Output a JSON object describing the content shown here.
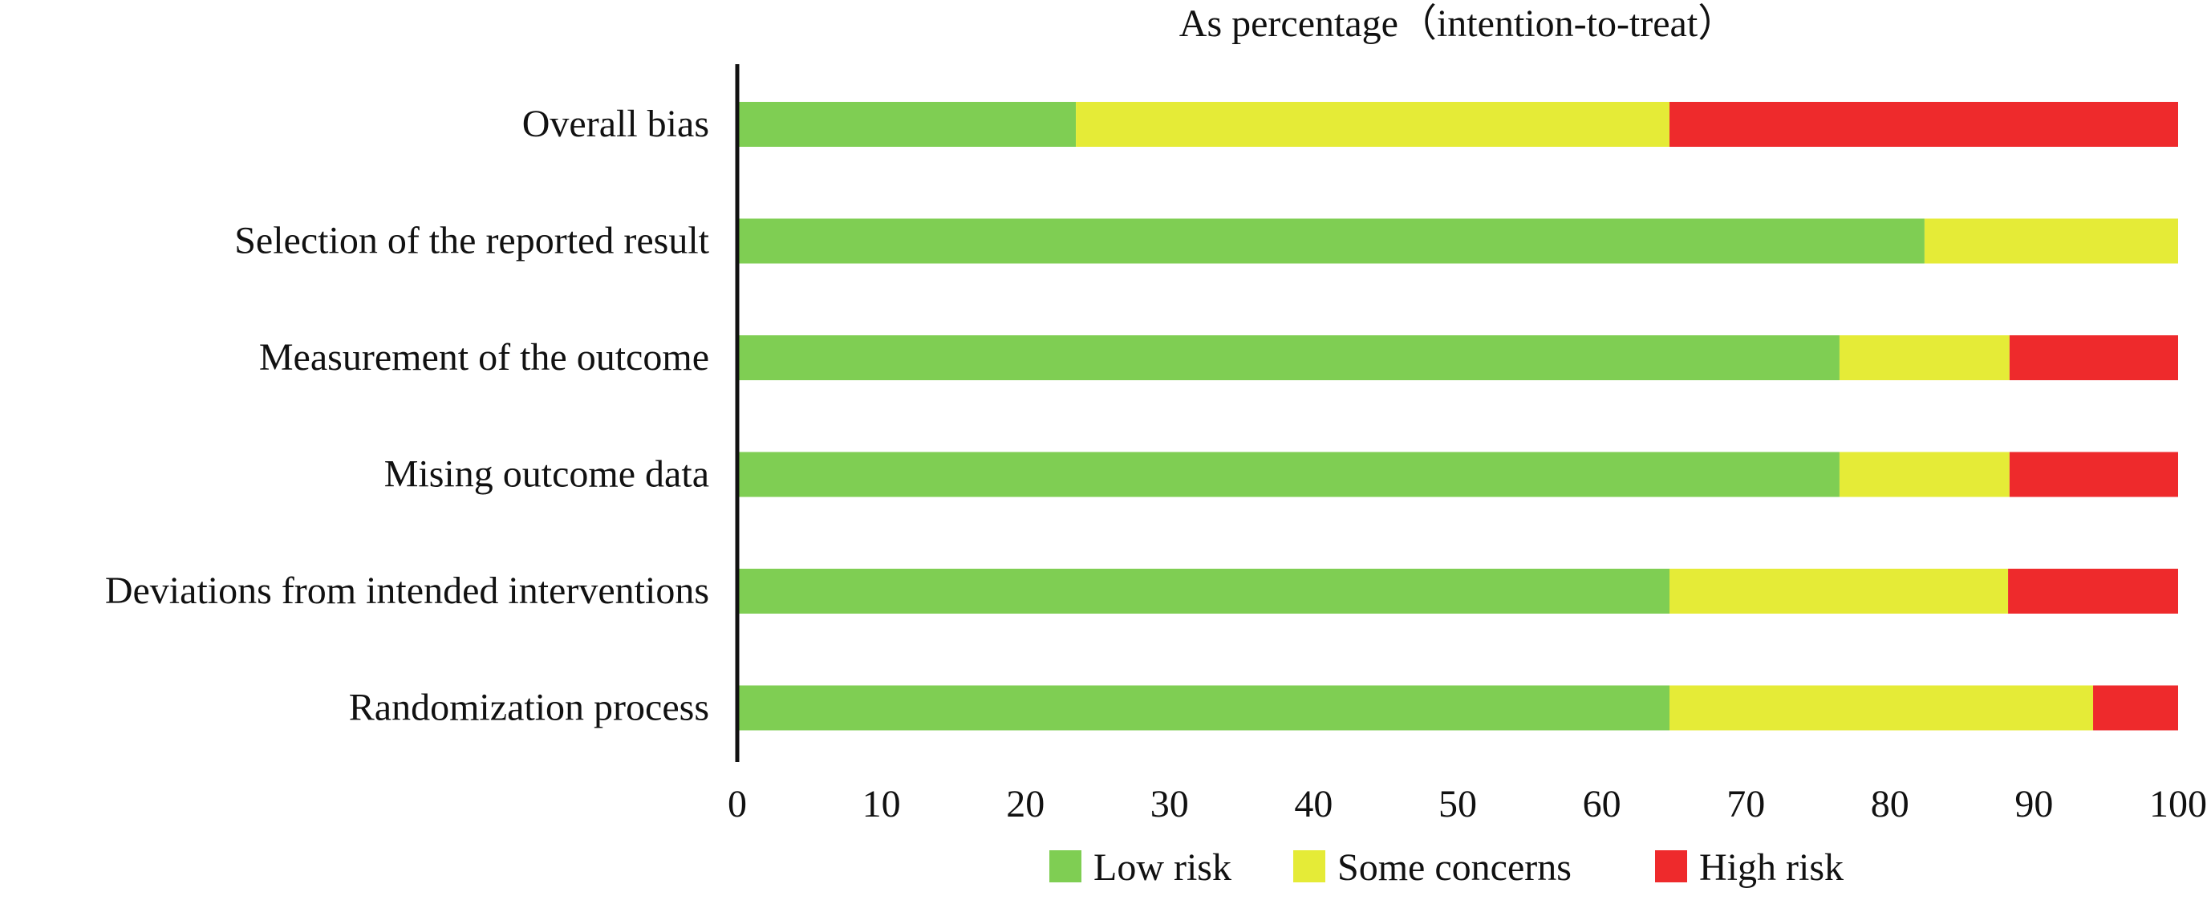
{
  "chart_data": {
    "type": "bar",
    "orientation": "horizontal",
    "stacked": true,
    "title": "As percentage（intention-to-treat）",
    "xlabel": "",
    "ylabel": "",
    "xlim": [
      0,
      100
    ],
    "xticks": [
      0,
      10,
      20,
      30,
      40,
      50,
      60,
      70,
      80,
      90,
      100
    ],
    "categories": [
      "Overall bias",
      "Selection of the reported result",
      "Measurement of the outcome",
      "Mising outcome data",
      "Deviations from intended interventions",
      "Randomization process"
    ],
    "series": [
      {
        "name": "Low risk",
        "color": "#7fce53",
        "values": [
          23.5,
          82.4,
          76.5,
          76.5,
          64.7,
          64.7
        ]
      },
      {
        "name": "Some concerns",
        "color": "#e5eb37",
        "values": [
          41.2,
          17.6,
          11.8,
          11.8,
          23.5,
          29.4
        ]
      },
      {
        "name": "High risk",
        "color": "#ee2a2c",
        "values": [
          35.3,
          0,
          11.7,
          11.7,
          11.8,
          5.9
        ]
      }
    ],
    "grid": false,
    "legend_position": "bottom"
  }
}
